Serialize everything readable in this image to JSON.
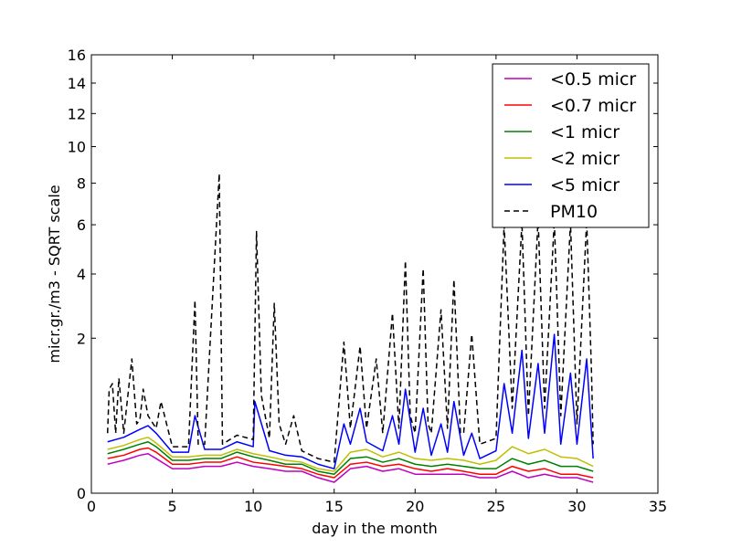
{
  "chart_data": {
    "type": "line",
    "xlabel": "day in the month",
    "ylabel": "micr.gr./m3 - SQRT scale",
    "xlim": [
      0,
      35
    ],
    "ylim": [
      0,
      16
    ],
    "y_scale": "sqrt",
    "x_ticks": [
      "0",
      "5",
      "10",
      "15",
      "20",
      "25",
      "30",
      "35"
    ],
    "y_ticks": [
      "0",
      "2",
      "4",
      "6",
      "8",
      "10",
      "12",
      "14",
      "16"
    ],
    "legend_position": "upper-right",
    "grid": false,
    "series": [
      {
        "name": "<0.5 micr",
        "color": "#bf00bf",
        "dash": "solid",
        "points": [
          [
            1.0,
            0.07
          ],
          [
            2.0,
            0.09
          ],
          [
            3.0,
            0.12
          ],
          [
            3.5,
            0.13
          ],
          [
            4.0,
            0.1
          ],
          [
            5.0,
            0.05
          ],
          [
            6.0,
            0.05
          ],
          [
            7.0,
            0.06
          ],
          [
            8.0,
            0.06
          ],
          [
            9.0,
            0.08
          ],
          [
            10.0,
            0.06
          ],
          [
            11.0,
            0.05
          ],
          [
            12.0,
            0.04
          ],
          [
            13.0,
            0.04
          ],
          [
            14.0,
            0.02
          ],
          [
            15.0,
            0.01
          ],
          [
            16.0,
            0.05
          ],
          [
            17.0,
            0.06
          ],
          [
            18.0,
            0.04
          ],
          [
            19.0,
            0.05
          ],
          [
            20.0,
            0.03
          ],
          [
            21.0,
            0.03
          ],
          [
            22.0,
            0.03
          ],
          [
            23.0,
            0.03
          ],
          [
            24.0,
            0.02
          ],
          [
            25.0,
            0.02
          ],
          [
            26.0,
            0.04
          ],
          [
            27.0,
            0.02
          ],
          [
            28.0,
            0.03
          ],
          [
            29.0,
            0.02
          ],
          [
            30.0,
            0.02
          ],
          [
            31.0,
            0.01
          ]
        ]
      },
      {
        "name": "<0.7 micr",
        "color": "#ff0000",
        "dash": "solid",
        "points": [
          [
            1.0,
            0.1
          ],
          [
            2.0,
            0.12
          ],
          [
            3.0,
            0.16
          ],
          [
            3.5,
            0.17
          ],
          [
            4.0,
            0.14
          ],
          [
            5.0,
            0.07
          ],
          [
            6.0,
            0.07
          ],
          [
            7.0,
            0.08
          ],
          [
            8.0,
            0.08
          ],
          [
            9.0,
            0.11
          ],
          [
            10.0,
            0.08
          ],
          [
            11.0,
            0.07
          ],
          [
            12.0,
            0.06
          ],
          [
            13.0,
            0.05
          ],
          [
            14.0,
            0.03
          ],
          [
            15.0,
            0.02
          ],
          [
            16.0,
            0.07
          ],
          [
            17.0,
            0.08
          ],
          [
            18.0,
            0.06
          ],
          [
            19.0,
            0.07
          ],
          [
            20.0,
            0.05
          ],
          [
            21.0,
            0.04
          ],
          [
            22.0,
            0.05
          ],
          [
            23.0,
            0.04
          ],
          [
            24.0,
            0.03
          ],
          [
            25.0,
            0.03
          ],
          [
            26.0,
            0.06
          ],
          [
            27.0,
            0.04
          ],
          [
            28.0,
            0.05
          ],
          [
            29.0,
            0.03
          ],
          [
            30.0,
            0.03
          ],
          [
            31.0,
            0.02
          ]
        ]
      },
      {
        "name": "<1 micr",
        "color": "#008000",
        "dash": "solid",
        "points": [
          [
            1.0,
            0.13
          ],
          [
            2.0,
            0.16
          ],
          [
            3.0,
            0.2
          ],
          [
            3.5,
            0.22
          ],
          [
            4.0,
            0.18
          ],
          [
            5.0,
            0.09
          ],
          [
            6.0,
            0.09
          ],
          [
            7.0,
            0.1
          ],
          [
            8.0,
            0.1
          ],
          [
            9.0,
            0.14
          ],
          [
            10.0,
            0.11
          ],
          [
            11.0,
            0.09
          ],
          [
            12.0,
            0.07
          ],
          [
            13.0,
            0.07
          ],
          [
            14.0,
            0.04
          ],
          [
            15.0,
            0.03
          ],
          [
            16.0,
            0.1
          ],
          [
            17.0,
            0.11
          ],
          [
            18.0,
            0.08
          ],
          [
            19.0,
            0.1
          ],
          [
            20.0,
            0.07
          ],
          [
            21.0,
            0.06
          ],
          [
            22.0,
            0.07
          ],
          [
            23.0,
            0.06
          ],
          [
            24.0,
            0.05
          ],
          [
            25.0,
            0.05
          ],
          [
            26.0,
            0.1
          ],
          [
            27.0,
            0.07
          ],
          [
            28.0,
            0.09
          ],
          [
            29.0,
            0.06
          ],
          [
            30.0,
            0.06
          ],
          [
            31.0,
            0.04
          ]
        ]
      },
      {
        "name": "<2 micr",
        "color": "#bfbf00",
        "dash": "solid",
        "points": [
          [
            1.0,
            0.16
          ],
          [
            2.0,
            0.19
          ],
          [
            3.0,
            0.24
          ],
          [
            3.5,
            0.26
          ],
          [
            4.0,
            0.21
          ],
          [
            5.0,
            0.11
          ],
          [
            6.0,
            0.11
          ],
          [
            7.0,
            0.12
          ],
          [
            8.0,
            0.12
          ],
          [
            9.0,
            0.16
          ],
          [
            10.0,
            0.13
          ],
          [
            11.0,
            0.11
          ],
          [
            12.0,
            0.09
          ],
          [
            13.0,
            0.08
          ],
          [
            14.0,
            0.05
          ],
          [
            15.0,
            0.04
          ],
          [
            16.0,
            0.14
          ],
          [
            17.0,
            0.16
          ],
          [
            18.0,
            0.11
          ],
          [
            19.0,
            0.14
          ],
          [
            20.0,
            0.1
          ],
          [
            21.0,
            0.09
          ],
          [
            22.0,
            0.1
          ],
          [
            23.0,
            0.09
          ],
          [
            24.0,
            0.07
          ],
          [
            25.0,
            0.09
          ],
          [
            26.0,
            0.18
          ],
          [
            27.0,
            0.13
          ],
          [
            28.0,
            0.16
          ],
          [
            29.0,
            0.11
          ],
          [
            30.0,
            0.1
          ],
          [
            31.0,
            0.06
          ]
        ]
      },
      {
        "name": "<5 micr",
        "color": "#0000ff",
        "dash": "solid",
        "points": [
          [
            1.0,
            0.22
          ],
          [
            2.0,
            0.26
          ],
          [
            3.0,
            0.34
          ],
          [
            3.5,
            0.38
          ],
          [
            4.0,
            0.3
          ],
          [
            5.0,
            0.14
          ],
          [
            6.0,
            0.14
          ],
          [
            6.4,
            0.5
          ],
          [
            7.0,
            0.16
          ],
          [
            8.0,
            0.16
          ],
          [
            9.0,
            0.22
          ],
          [
            10.0,
            0.18
          ],
          [
            10.1,
            0.7
          ],
          [
            11.0,
            0.15
          ],
          [
            12.0,
            0.12
          ],
          [
            13.0,
            0.11
          ],
          [
            14.0,
            0.07
          ],
          [
            15.0,
            0.05
          ],
          [
            15.6,
            0.4
          ],
          [
            16.0,
            0.2
          ],
          [
            16.6,
            0.6
          ],
          [
            17.0,
            0.22
          ],
          [
            18.0,
            0.15
          ],
          [
            18.6,
            0.5
          ],
          [
            19.0,
            0.2
          ],
          [
            19.4,
            0.9
          ],
          [
            20.0,
            0.14
          ],
          [
            20.5,
            0.6
          ],
          [
            21.0,
            0.12
          ],
          [
            21.6,
            0.4
          ],
          [
            22.0,
            0.14
          ],
          [
            22.4,
            0.7
          ],
          [
            23.0,
            0.12
          ],
          [
            23.5,
            0.3
          ],
          [
            24.0,
            0.1
          ],
          [
            25.0,
            0.15
          ],
          [
            25.5,
            1.0
          ],
          [
            26.0,
            0.3
          ],
          [
            26.6,
            1.7
          ],
          [
            27.0,
            0.25
          ],
          [
            27.6,
            1.4
          ],
          [
            28.0,
            0.3
          ],
          [
            28.6,
            2.1
          ],
          [
            29.0,
            0.2
          ],
          [
            29.6,
            1.2
          ],
          [
            30.0,
            0.2
          ],
          [
            30.6,
            1.5
          ],
          [
            31.0,
            0.1
          ]
        ]
      },
      {
        "name": "PM10",
        "color": "#000000",
        "dash": "dashed",
        "points": [
          [
            1.0,
            0.3
          ],
          [
            1.1,
            0.9
          ],
          [
            1.3,
            1.0
          ],
          [
            1.5,
            0.3
          ],
          [
            1.7,
            1.1
          ],
          [
            2.0,
            0.3
          ],
          [
            2.5,
            1.5
          ],
          [
            2.8,
            0.4
          ],
          [
            3.0,
            0.45
          ],
          [
            3.2,
            0.9
          ],
          [
            3.5,
            0.5
          ],
          [
            4.0,
            0.35
          ],
          [
            4.3,
            0.7
          ],
          [
            5.0,
            0.18
          ],
          [
            6.0,
            0.18
          ],
          [
            6.4,
            3.1
          ],
          [
            6.6,
            0.2
          ],
          [
            7.0,
            0.2
          ],
          [
            7.9,
            8.5
          ],
          [
            8.1,
            0.2
          ],
          [
            9.0,
            0.28
          ],
          [
            10.0,
            0.24
          ],
          [
            10.2,
            5.7
          ],
          [
            10.5,
            0.8
          ],
          [
            11.0,
            0.25
          ],
          [
            11.3,
            3.0
          ],
          [
            11.6,
            0.4
          ],
          [
            12.0,
            0.2
          ],
          [
            12.5,
            0.5
          ],
          [
            13.0,
            0.15
          ],
          [
            14.0,
            0.1
          ],
          [
            15.0,
            0.08
          ],
          [
            15.6,
            1.9
          ],
          [
            16.0,
            0.35
          ],
          [
            16.6,
            1.8
          ],
          [
            17.0,
            0.35
          ],
          [
            17.6,
            1.5
          ],
          [
            18.0,
            0.3
          ],
          [
            18.6,
            2.7
          ],
          [
            19.0,
            0.35
          ],
          [
            19.4,
            4.5
          ],
          [
            19.7,
            0.5
          ],
          [
            20.0,
            0.3
          ],
          [
            20.5,
            4.2
          ],
          [
            20.8,
            0.4
          ],
          [
            21.0,
            0.3
          ],
          [
            21.6,
            2.8
          ],
          [
            22.0,
            0.35
          ],
          [
            22.4,
            3.8
          ],
          [
            22.8,
            0.3
          ],
          [
            23.0,
            0.3
          ],
          [
            23.5,
            2.1
          ],
          [
            24.0,
            0.2
          ],
          [
            25.0,
            0.25
          ],
          [
            25.5,
            6.0
          ],
          [
            26.0,
            0.6
          ],
          [
            26.6,
            6.1
          ],
          [
            27.0,
            0.5
          ],
          [
            27.6,
            6.3
          ],
          [
            28.0,
            0.6
          ],
          [
            28.6,
            6.2
          ],
          [
            29.0,
            0.5
          ],
          [
            29.6,
            6.1
          ],
          [
            30.0,
            0.4
          ],
          [
            30.6,
            6.2
          ],
          [
            30.9,
            1.2
          ],
          [
            31.0,
            0.2
          ]
        ]
      }
    ]
  }
}
